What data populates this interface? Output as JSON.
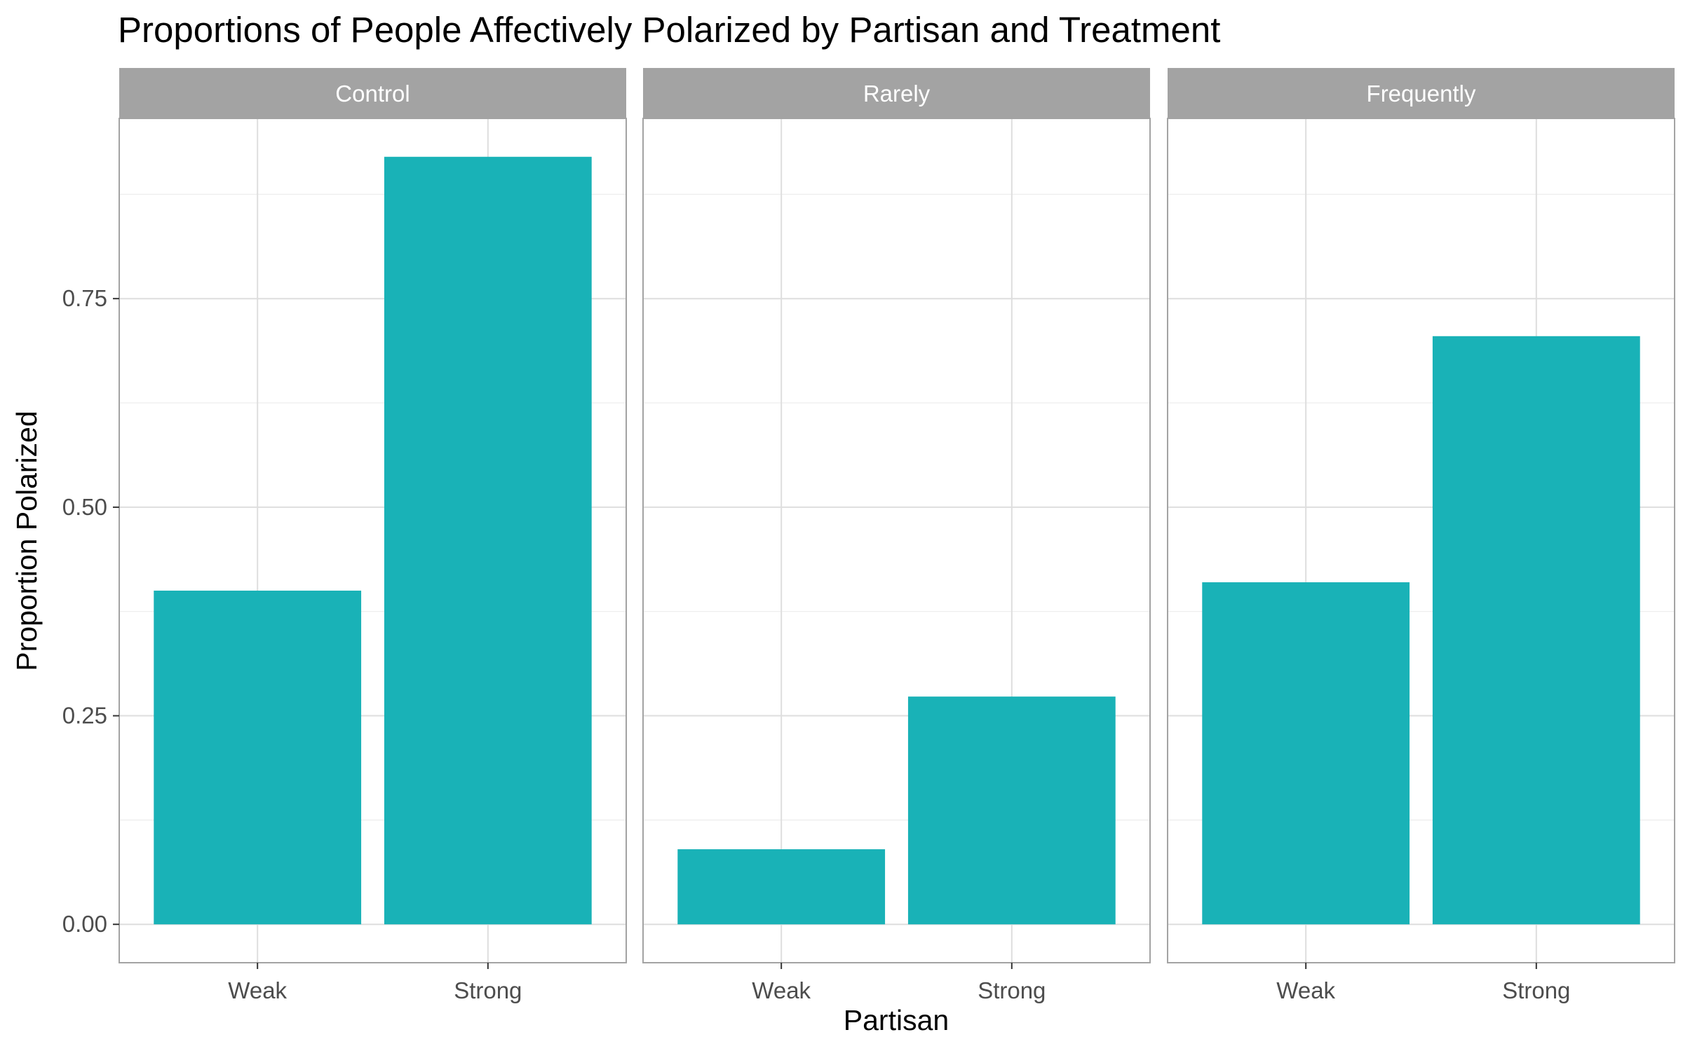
{
  "chart_data": {
    "type": "bar",
    "title": "Proportions of People Affectively Polarized by Partisan and Treatment",
    "xlabel": "Partisan",
    "ylabel": "Proportion Polarized",
    "categories": [
      "Weak",
      "Strong"
    ],
    "facets": [
      {
        "label": "Control",
        "values": [
          0.4,
          0.92
        ]
      },
      {
        "label": "Rarely",
        "values": [
          0.09,
          0.273
        ]
      },
      {
        "label": "Frequently",
        "values": [
          0.41,
          0.705
        ]
      }
    ],
    "yticks": [
      0,
      0.25,
      0.5,
      0.75
    ],
    "ytick_labels": [
      "0.00",
      "0.25",
      "0.50",
      "0.75"
    ],
    "ylim": [
      -0.046,
      0.966
    ],
    "grid": true,
    "bar_color": "#19B2B7"
  }
}
